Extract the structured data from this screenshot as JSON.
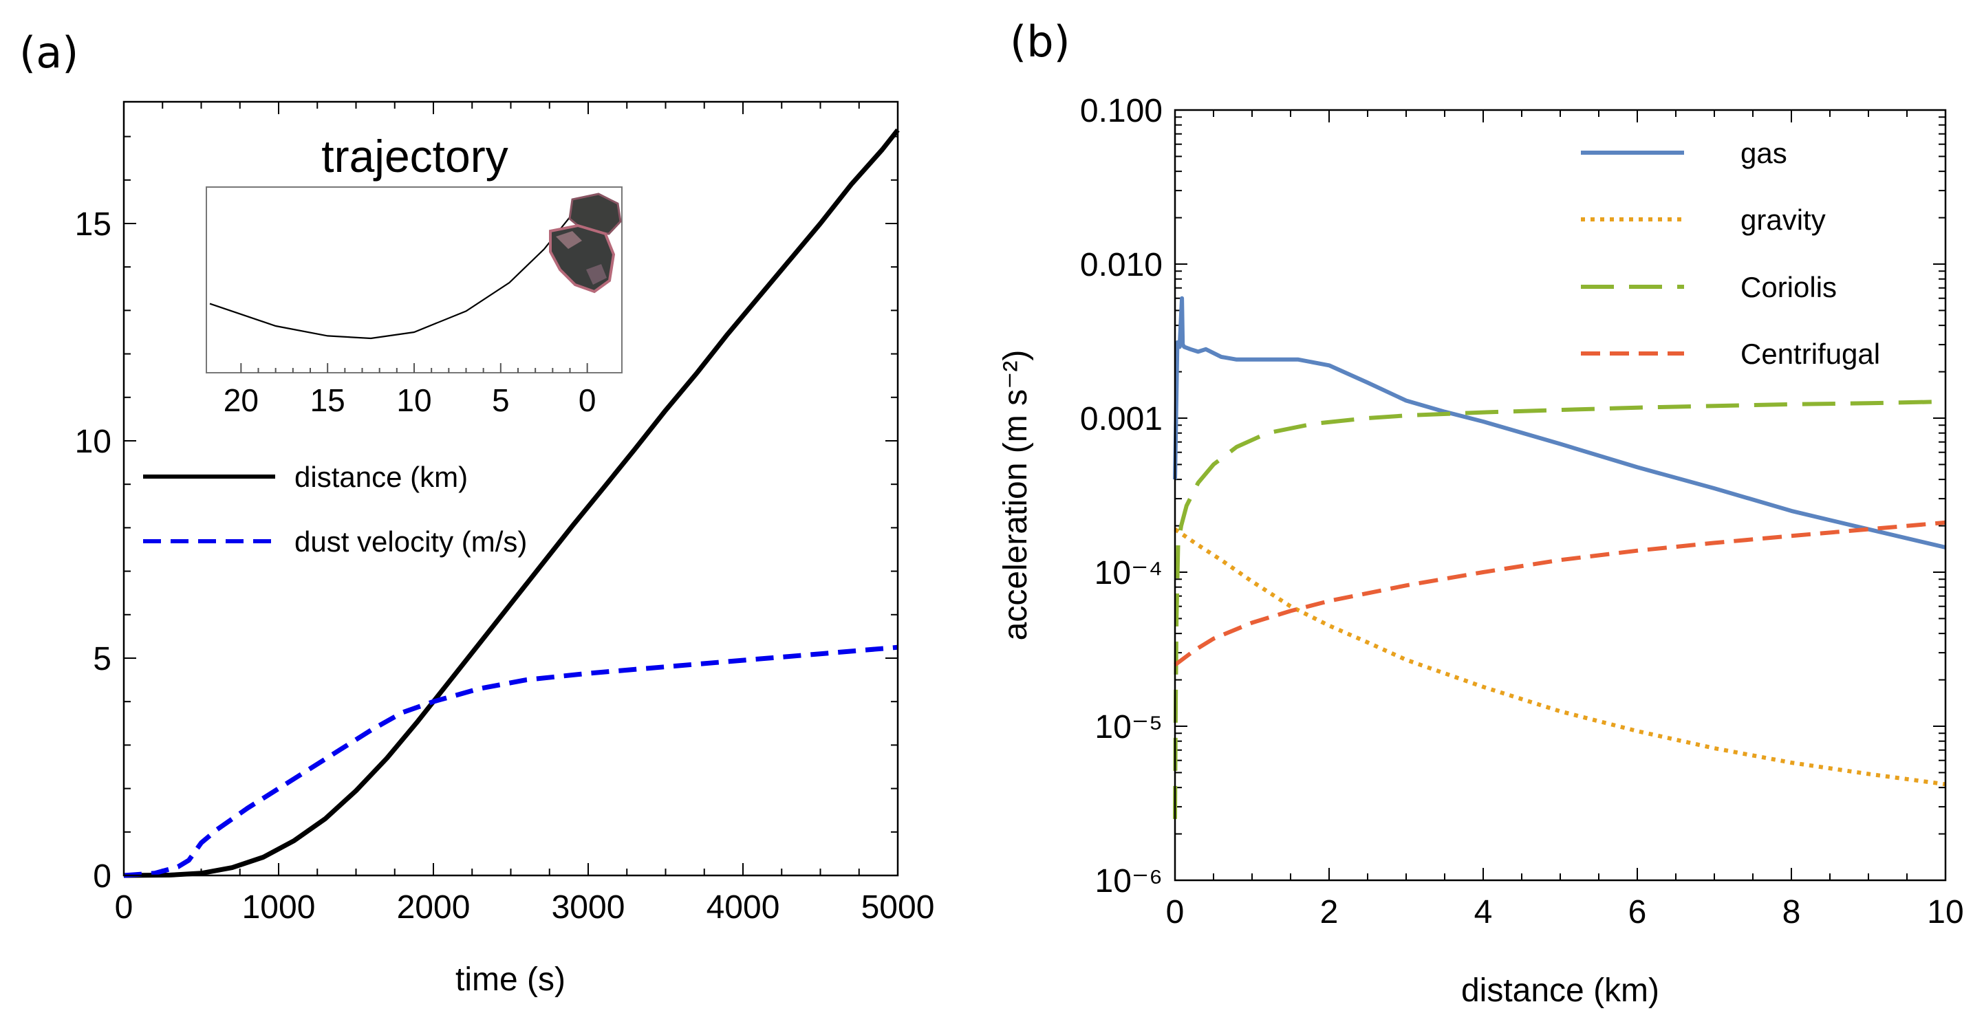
{
  "chart_data": [
    {
      "panel": "(a)",
      "type": "line",
      "xlabel": "time (s)",
      "ylabel": "",
      "xlim": [
        0,
        5000
      ],
      "ylim": [
        0,
        17.8
      ],
      "xticks": [
        0,
        1000,
        2000,
        3000,
        4000,
        5000
      ],
      "xtick_labels": [
        "0",
        "1000",
        "2000",
        "3000",
        "4000",
        "5000"
      ],
      "yticks": [
        0,
        5,
        10,
        15
      ],
      "ytick_labels": [
        "0",
        "5",
        "10",
        "15"
      ],
      "legend_position": "middle-left",
      "series": [
        {
          "name": "distance (km)",
          "color": "#000000",
          "style": "solid",
          "x": [
            0,
            300,
            500,
            700,
            900,
            1100,
            1300,
            1500,
            1700,
            1900,
            2100,
            2300,
            2500,
            2700,
            2900,
            3100,
            3300,
            3500,
            3700,
            3900,
            4100,
            4300,
            4500,
            4700,
            4900,
            5000
          ],
          "y": [
            0,
            0.01,
            0.05,
            0.18,
            0.42,
            0.8,
            1.3,
            1.95,
            2.7,
            3.55,
            4.45,
            5.35,
            6.25,
            7.15,
            8.05,
            8.92,
            9.8,
            10.7,
            11.55,
            12.45,
            13.3,
            14.15,
            15.0,
            15.9,
            16.7,
            17.15
          ]
        },
        {
          "name": "dust velocity (m/s)",
          "color": "#0000ee",
          "style": "dashed",
          "x": [
            0,
            200,
            350,
            420,
            500,
            600,
            800,
            1000,
            1200,
            1400,
            1600,
            1800,
            2000,
            2100,
            2300,
            2600,
            3000,
            3500,
            4000,
            4500,
            5000
          ],
          "y": [
            0,
            0.05,
            0.2,
            0.35,
            0.75,
            1.05,
            1.55,
            2.0,
            2.45,
            2.9,
            3.35,
            3.75,
            4.0,
            4.1,
            4.3,
            4.5,
            4.65,
            4.8,
            4.95,
            5.1,
            5.25
          ]
        }
      ],
      "inset": {
        "title": "trajectory",
        "xlim": [
          22,
          -2
        ],
        "xticks": [
          20,
          15,
          10,
          5,
          0
        ],
        "xtick_labels": [
          "20",
          "15",
          "10",
          "5",
          "0"
        ],
        "path_x": [
          21.8,
          18,
          15,
          12.5,
          10,
          7,
          4.5,
          2.5,
          1.0
        ],
        "path_y": [
          0.28,
          0.1,
          0.02,
          0.0,
          0.05,
          0.22,
          0.45,
          0.72,
          0.98
        ]
      }
    },
    {
      "panel": "(b)",
      "type": "line",
      "xlabel": "distance (km)",
      "ylabel": "acceleration (m s⁻²)",
      "xlim": [
        0,
        10
      ],
      "ylim": [
        1e-06,
        0.1
      ],
      "yscale": "log",
      "xticks": [
        0,
        2,
        4,
        6,
        8,
        10
      ],
      "xtick_labels": [
        "0",
        "2",
        "4",
        "6",
        "8",
        "10"
      ],
      "yticks": [
        1e-06,
        1e-05,
        0.0001,
        0.001,
        0.01,
        0.1
      ],
      "ytick_labels": [
        "10⁻⁶",
        "10⁻⁵",
        "10⁻⁴",
        "0.001",
        "0.010",
        "0.100"
      ],
      "legend_position": "top-right",
      "series": [
        {
          "name": "gas",
          "color": "#5b84c0",
          "style": "solid",
          "x": [
            0,
            0.03,
            0.06,
            0.09,
            0.1,
            0.12,
            0.2,
            0.3,
            0.4,
            0.6,
            0.8,
            1.0,
            1.3,
            1.6,
            2.0,
            2.5,
            3.0,
            3.5,
            4.0,
            5.0,
            6.0,
            7.0,
            8.0,
            9.0,
            10.0
          ],
          "y": [
            0.0004,
            0.0031,
            0.0029,
            0.006,
            0.003,
            0.0029,
            0.0028,
            0.0027,
            0.0028,
            0.0025,
            0.0024,
            0.0024,
            0.0024,
            0.0024,
            0.0022,
            0.0017,
            0.0013,
            0.0011,
            0.00095,
            0.00068,
            0.00048,
            0.00035,
            0.00025,
            0.00019,
            0.000145
          ]
        },
        {
          "name": "gravity",
          "color": "#e8a11e",
          "style": "dotted",
          "x": [
            0,
            0.3,
            0.6,
            1.0,
            1.5,
            2.0,
            2.5,
            3.0,
            4.0,
            5.0,
            6.0,
            7.0,
            8.0,
            9.0,
            10.0
          ],
          "y": [
            0.00019,
            0.00015,
            0.00012,
            8.7e-05,
            6e-05,
            4.5e-05,
            3.5e-05,
            2.7e-05,
            1.8e-05,
            1.25e-05,
            9.3e-06,
            7.2e-06,
            5.8e-06,
            4.9e-06,
            4.2e-06
          ]
        },
        {
          "name": "Coriolis",
          "color": "#8db431",
          "style": "longdash",
          "x": [
            0,
            0.01,
            0.02,
            0.04,
            0.08,
            0.15,
            0.3,
            0.5,
            0.8,
            1.2,
            1.8,
            2.5,
            3.0,
            4.0,
            5.0,
            6.0,
            7.0,
            8.0,
            9.0,
            10.0
          ],
          "y": [
            2.5e-06,
            1.5e-05,
            5e-05,
            0.00015,
            0.0002,
            0.00027,
            0.00038,
            0.0005,
            0.00065,
            0.0008,
            0.00092,
            0.001,
            0.00104,
            0.00109,
            0.00113,
            0.00117,
            0.0012,
            0.00123,
            0.00125,
            0.00128
          ]
        },
        {
          "name": "Centrifugal",
          "color": "#e95f36",
          "style": "dashed",
          "x": [
            0,
            0.25,
            0.5,
            1.0,
            1.5,
            2.0,
            3.0,
            4.0,
            5.0,
            6.0,
            7.0,
            8.0,
            9.0,
            10.0
          ],
          "y": [
            2.5e-05,
            3.1e-05,
            3.7e-05,
            4.7e-05,
            5.6e-05,
            6.5e-05,
            8.2e-05,
            0.0001,
            0.00012,
            0.000138,
            0.000155,
            0.000172,
            0.00019,
            0.00021
          ]
        }
      ]
    }
  ],
  "colors": {
    "comet_dark": "#3b3d3c",
    "comet_highlight": "#b66a7a"
  }
}
